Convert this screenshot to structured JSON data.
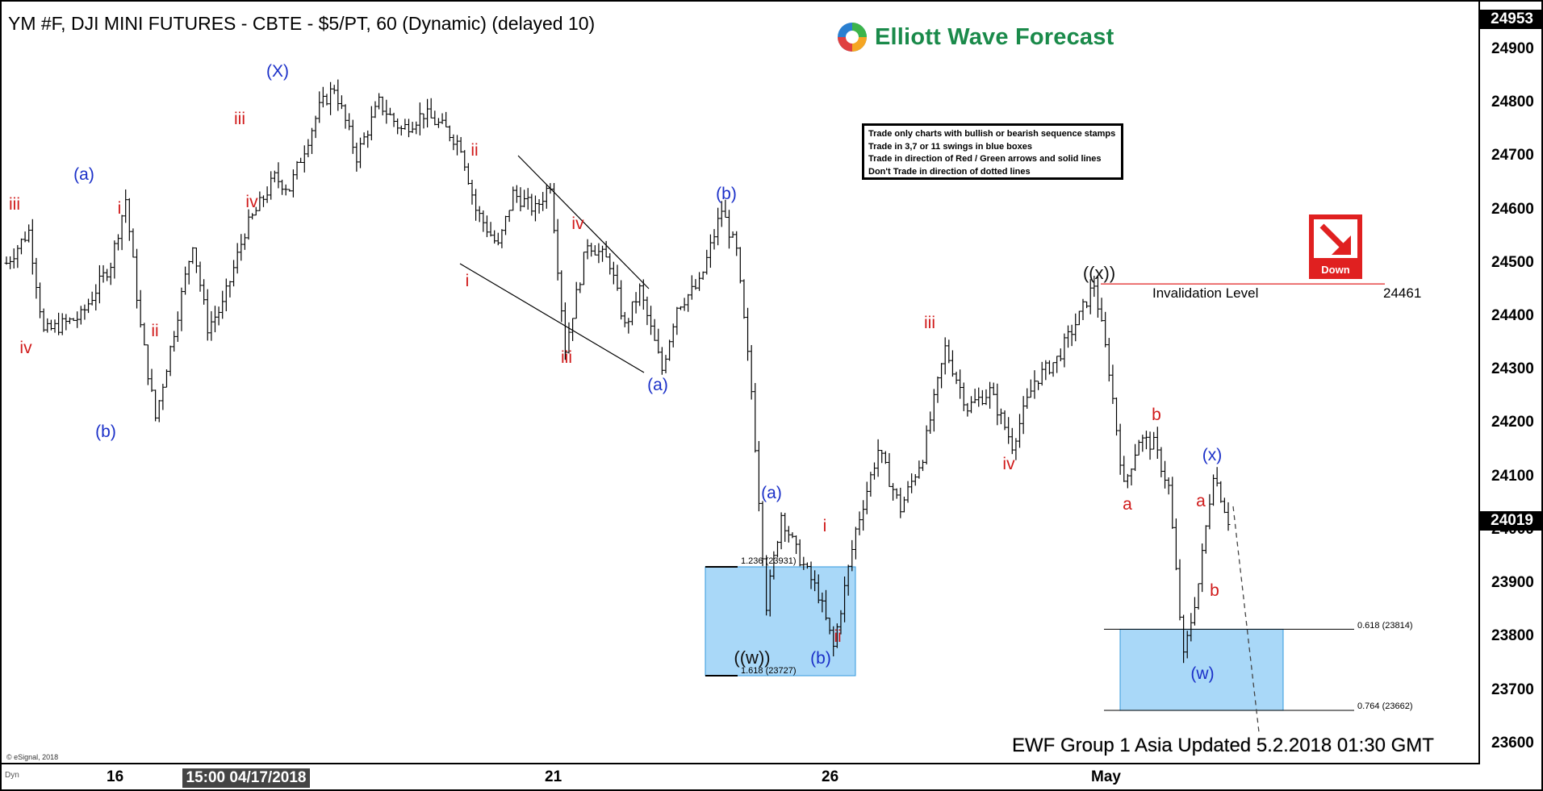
{
  "header": {
    "title": "YM #F, DJI MINI FUTURES - CBTE - $5/PT, 60 (Dynamic) (delayed 10)",
    "logo_text": "Elliott Wave Forecast"
  },
  "rules_box": {
    "lines": [
      "Trade only charts with bullish or bearish sequence stamps",
      "Trade in 3,7 or 11 swings in blue boxes",
      "Trade in direction of Red / Green arrows and solid lines",
      "Don't Trade in direction of dotted lines"
    ]
  },
  "badge": {
    "label": "Down",
    "color": "#e02020"
  },
  "invalidation": {
    "label": "Invalidation Level",
    "value": "24461"
  },
  "footer": {
    "text": "EWF Group 1 Asia Updated 5.2.2018 01:30 GMT"
  },
  "copyright": "© eSignal, 2018",
  "dyn_label": "Dyn",
  "x_axis": {
    "ticks": [
      "16",
      "21",
      "26",
      "May"
    ],
    "highlight": "15:00 04/17/2018"
  },
  "y_axis": {
    "ticks": [
      "24900",
      "24800",
      "24700",
      "24600",
      "24500",
      "24400",
      "24300",
      "24200",
      "24100",
      "24000",
      "23900",
      "23800",
      "23700",
      "23600"
    ],
    "last_price": "24019",
    "top_price": "24953"
  },
  "fib_levels": {
    "left_1236": "1.236 (23931)",
    "left_1618": "1.618 (23727)",
    "right_0618": "0.618 (23814)",
    "right_0764": "0.764 (23662)"
  },
  "wave_labels": [
    {
      "text": "iii",
      "color": "red"
    },
    {
      "text": "iv",
      "color": "red"
    },
    {
      "text": "(a)",
      "color": "blue"
    },
    {
      "text": "(b)",
      "color": "blue"
    },
    {
      "text": "i",
      "color": "red"
    },
    {
      "text": "ii",
      "color": "red"
    },
    {
      "text": "iii",
      "color": "red"
    },
    {
      "text": "iv",
      "color": "red"
    },
    {
      "text": "(X)",
      "color": "blue"
    },
    {
      "text": "ii",
      "color": "red"
    },
    {
      "text": "i",
      "color": "red"
    },
    {
      "text": "iv",
      "color": "red"
    },
    {
      "text": "iii",
      "color": "red"
    },
    {
      "text": "(a)",
      "color": "blue"
    },
    {
      "text": "(b)",
      "color": "blue"
    },
    {
      "text": "(a)",
      "color": "blue"
    },
    {
      "text": "((w))",
      "color": "dark"
    },
    {
      "text": "(b)",
      "color": "blue"
    },
    {
      "text": "i",
      "color": "red"
    },
    {
      "text": "ii",
      "color": "red"
    },
    {
      "text": "iii",
      "color": "red"
    },
    {
      "text": "iv",
      "color": "red"
    },
    {
      "text": "((x))",
      "color": "dark"
    },
    {
      "text": "a",
      "color": "red"
    },
    {
      "text": "b",
      "color": "red"
    },
    {
      "text": "(x)",
      "color": "blue"
    },
    {
      "text": "a",
      "color": "red"
    },
    {
      "text": "b",
      "color": "red"
    },
    {
      "text": "(w)",
      "color": "blue"
    }
  ],
  "colors": {
    "bars": "#000000",
    "box_fill": "#a9d8f8",
    "box_stroke": "#3399dd",
    "invalid_line": "#e02020",
    "blue_label": "#1a2fc8",
    "red_label": "#d01a1a"
  },
  "chart_data": {
    "type": "ohlc",
    "title": "YM #F, DJI MINI FUTURES - CBTE - $5/PT, 60 (Dynamic) (delayed 10)",
    "xlabel": "",
    "ylabel": "",
    "ylim": [
      23560,
      24953
    ],
    "path_points": [
      [
        0,
        24500
      ],
      [
        6,
        24560
      ],
      [
        10,
        24370
      ],
      [
        20,
        24400
      ],
      [
        28,
        24500
      ],
      [
        32,
        24620
      ],
      [
        36,
        24380
      ],
      [
        40,
        24210
      ],
      [
        44,
        24340
      ],
      [
        50,
        24540
      ],
      [
        54,
        24380
      ],
      [
        58,
        24420
      ],
      [
        64,
        24560
      ],
      [
        72,
        24660
      ],
      [
        76,
        24640
      ],
      [
        84,
        24790
      ],
      [
        88,
        24830
      ],
      [
        94,
        24700
      ],
      [
        100,
        24800
      ],
      [
        106,
        24750
      ],
      [
        112,
        24780
      ],
      [
        118,
        24750
      ],
      [
        122,
        24720
      ],
      [
        126,
        24600
      ],
      [
        132,
        24530
      ],
      [
        136,
        24630
      ],
      [
        142,
        24600
      ],
      [
        146,
        24650
      ],
      [
        150,
        24340
      ],
      [
        156,
        24540
      ],
      [
        162,
        24500
      ],
      [
        166,
        24380
      ],
      [
        170,
        24450
      ],
      [
        176,
        24300
      ],
      [
        180,
        24420
      ],
      [
        186,
        24460
      ],
      [
        192,
        24600
      ],
      [
        196,
        24520
      ],
      [
        200,
        24260
      ],
      [
        204,
        23860
      ],
      [
        208,
        24030
      ],
      [
        212,
        23960
      ],
      [
        218,
        23880
      ],
      [
        222,
        23780
      ],
      [
        228,
        24000
      ],
      [
        234,
        24150
      ],
      [
        240,
        24040
      ],
      [
        246,
        24140
      ],
      [
        252,
        24340
      ],
      [
        258,
        24230
      ],
      [
        264,
        24260
      ],
      [
        270,
        24160
      ],
      [
        276,
        24280
      ],
      [
        282,
        24320
      ],
      [
        288,
        24400
      ],
      [
        292,
        24461
      ],
      [
        296,
        24300
      ],
      [
        300,
        24080
      ],
      [
        304,
        24170
      ],
      [
        308,
        24160
      ],
      [
        312,
        24080
      ],
      [
        316,
        23760
      ],
      [
        320,
        23900
      ],
      [
        324,
        24110
      ],
      [
        328,
        24019
      ]
    ]
  }
}
